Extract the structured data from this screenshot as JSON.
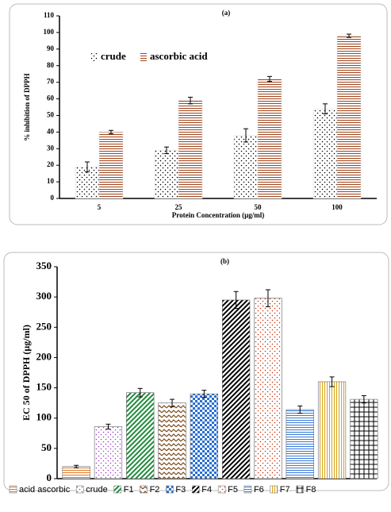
{
  "chart_data": [
    {
      "type": "bar",
      "title": "(a)",
      "y_label": "% inhibition of DPPH",
      "x_label": "Protein Concentration (µg/ml)",
      "categories": [
        "5",
        "25",
        "50",
        "100"
      ],
      "series": [
        {
          "name": "crude",
          "color": "#000000",
          "pattern": "dots",
          "values": [
            19,
            29,
            38,
            54
          ],
          "errors": [
            3,
            2,
            4,
            3
          ]
        },
        {
          "name": "ascorbic acid",
          "color": "#a0441c",
          "pattern": "hlines",
          "values": [
            40,
            59,
            72,
            98
          ],
          "errors": [
            1,
            2,
            1.5,
            1
          ]
        }
      ],
      "ylim": [
        0,
        110
      ],
      "yticks": [
        0,
        10,
        20,
        30,
        40,
        50,
        60,
        70,
        80,
        90,
        100,
        110
      ],
      "legend": "top-left"
    },
    {
      "type": "bar",
      "title": "(b)",
      "y_label": "EC 50 of DPPH (µg/ml)",
      "categories": [
        "acid ascorbic",
        "crude",
        "F1",
        "F2",
        "F3",
        "F4",
        "F5",
        "F6",
        "F7",
        "F8"
      ],
      "values": [
        20,
        86,
        142,
        125,
        140,
        295,
        298,
        114,
        160,
        131
      ],
      "errors": [
        2,
        4,
        7,
        6,
        6,
        14,
        14,
        6,
        8,
        6
      ],
      "colors": [
        "#e07b28",
        "#9b3fc0",
        "#1e8a3a",
        "#7a4a1a",
        "#2a6fd1",
        "#000000",
        "#c8330e",
        "#3a7ad8",
        "#d6a21a",
        "#000000"
      ],
      "patterns": [
        "hlines",
        "dots",
        "diag",
        "zigzag",
        "checker",
        "diag",
        "dots",
        "hlines",
        "vlines",
        "grid"
      ],
      "ylim": [
        0,
        350
      ],
      "yticks": [
        0,
        50,
        100,
        150,
        200,
        250,
        300,
        350
      ],
      "legend": "bottom"
    }
  ]
}
